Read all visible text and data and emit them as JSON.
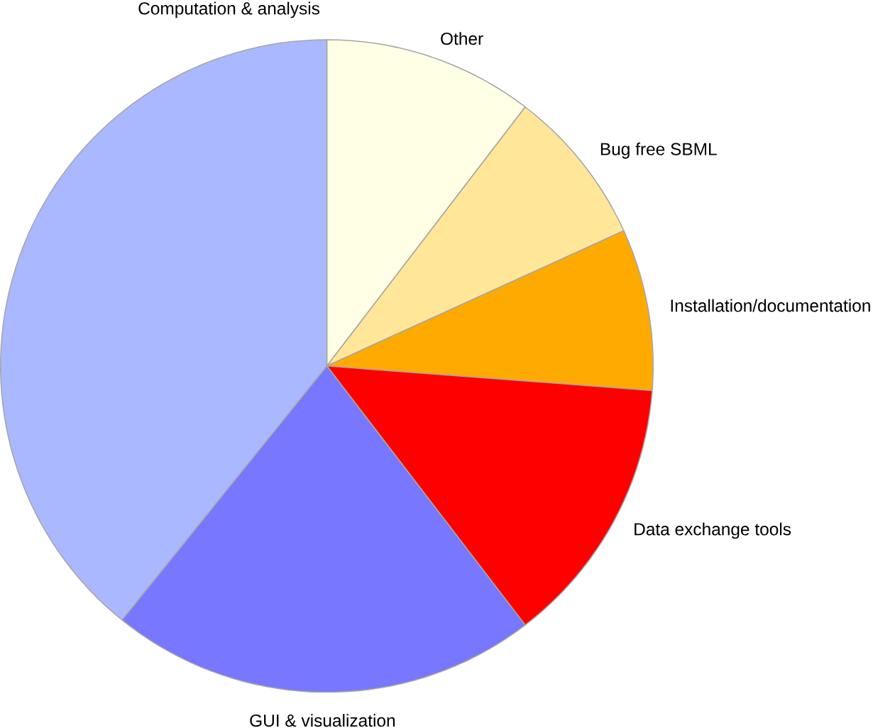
{
  "chart_data": {
    "type": "pie",
    "categories": [
      "Other",
      "Bug free SBML",
      "Installation/documentation",
      "Data exchange tools",
      "GUI & visualization",
      "Computation & analysis"
    ],
    "values": [
      10.4,
      7.8,
      8.0,
      13.4,
      21.2,
      39.2
    ],
    "colors": [
      "#ffffe6",
      "#ffe699",
      "#ffaa00",
      "#ff0000",
      "#7777ff",
      "#aab8ff"
    ]
  }
}
